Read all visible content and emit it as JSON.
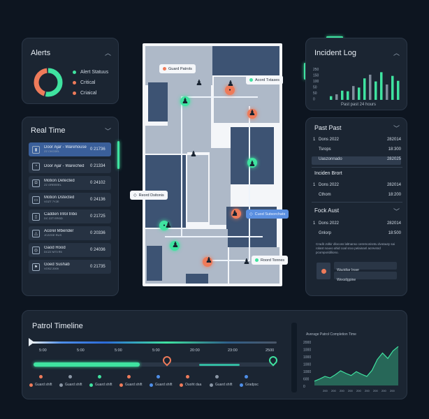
{
  "alerts": {
    "title": "Alerts",
    "legend": [
      {
        "label": "Alert Statuus",
        "color": "#3fe3a0"
      },
      {
        "label": "Critical",
        "color": "#ee7b5a"
      },
      {
        "label": "Criaical",
        "color": "#ee7b5a"
      }
    ],
    "donut": {
      "green_fraction": 0.55,
      "orange_fraction": 0.45,
      "green": "#3fe3a0",
      "orange": "#ee7b5a"
    }
  },
  "realtime": {
    "title": "Real Time",
    "items": [
      {
        "title": "Door Ajar - Warehouse",
        "sub": "ZZ CKCDEL",
        "value": "0 21736",
        "icon": "door-icon",
        "glyph": "▮"
      },
      {
        "title": "Door Ajar - Wareched",
        "sub": "",
        "value": "0 21334",
        "icon": "clock-icon",
        "glyph": "◔"
      },
      {
        "title": "Motion Detected",
        "sub": "ZZ OREEEEL",
        "value": "0 24102",
        "icon": "camera-icon",
        "glyph": "◘"
      },
      {
        "title": "Motion Dstected",
        "sub": "VOZT 7Y2E",
        "value": "0 24136",
        "icon": "screen-icon",
        "glyph": "▭"
      },
      {
        "title": "Cadden Infol tribo",
        "sub": "DC ZZT ERGD",
        "value": "0 21725",
        "icon": "phone-icon",
        "glyph": "▯"
      },
      {
        "title": "Acorel Mberider",
        "sub": "JCZZGE RUS",
        "value": "0 20336",
        "icon": "shield-icon",
        "glyph": "△"
      },
      {
        "title": "Gaod Rood",
        "sub": "DCZZ M73 R5",
        "value": "0 24036",
        "icon": "pin-icon",
        "glyph": "◎"
      },
      {
        "title": "Goed Sushab",
        "sub": "VOSZ 2009",
        "value": "0 21735",
        "icon": "flag-icon",
        "glyph": "⚑"
      }
    ]
  },
  "map": {
    "tags": [
      {
        "label": "Guard Patrols",
        "dot": "#ee7b5a",
        "style": "light"
      },
      {
        "label": "Acord Txtases",
        "dot": "#3fe3a0",
        "style": "light"
      },
      {
        "label": "Reord Dsitonis",
        "dot": "",
        "style": "light"
      },
      {
        "label": "Cuod Sutsorchatx",
        "dot": "",
        "style": "blue"
      },
      {
        "label": "Roord Tonnes",
        "dot": "#3fe3a0",
        "style": "light"
      }
    ]
  },
  "incident_log": {
    "title": "Incident Log",
    "yticks": [
      "250",
      "150",
      "100",
      "50",
      "50",
      "0"
    ],
    "bars": [
      0.12,
      0.18,
      0.3,
      0.28,
      0.45,
      0.4,
      0.7,
      0.82,
      0.6,
      0.9,
      0.5,
      0.78,
      0.62
    ],
    "bar_color": "#3fe3a0",
    "caption": "Past past 24 hours"
  },
  "past": {
    "title": "Past Past",
    "rows": [
      {
        "n": "1",
        "a": "Dons 2022",
        "b": "282014"
      },
      {
        "n": "",
        "a": "Tsrops",
        "b": "18:300"
      },
      {
        "n": "",
        "a": "Uaszonnado",
        "b": "282025"
      }
    ]
  },
  "incident_brort": {
    "title": "Inciden Brort",
    "rows": [
      {
        "n": "1",
        "a": "Dons 2022",
        "b": "282014"
      },
      {
        "n": "",
        "a": "Cthom",
        "b": "18:200"
      }
    ]
  },
  "fock_aust": {
    "title": "Fock Aust",
    "rows": [
      {
        "n": "1",
        "a": "Dons 2022",
        "b": "282014"
      },
      {
        "n": "",
        "a": "Gnlorp",
        "b": "18:500"
      }
    ],
    "para": "Cradit Jolkir dlocoss laltnanso ceremonisntu dvotauty sai rolant nouvo ahid coal sroo pelainanl acrevsnd pcomporidiliono.",
    "items": [
      "Wazidtar Inser",
      "Wexstlgpine"
    ]
  },
  "patrol": {
    "title": "Patrol Timeline",
    "times": [
      "5:00",
      "5:00",
      "5:00",
      "5:00",
      "20:00",
      "23:00",
      "2500"
    ],
    "progress": 0.44,
    "legend": [
      {
        "label": "Guard shift",
        "color": "#ee7b5a"
      },
      {
        "label": "Guard shift",
        "color": "#8b97a6"
      },
      {
        "label": "Guard shift",
        "color": "#3fe3a0"
      },
      {
        "label": "Guard shift",
        "color": "#ee7b5a"
      },
      {
        "label": "Guard shift",
        "color": "#4e8ee8"
      },
      {
        "label": "Ouoht daa",
        "color": "#ee7b5a"
      },
      {
        "label": "Guard shift",
        "color": "#8b97a6"
      },
      {
        "label": "Gradpsc",
        "color": "#4e8ee8"
      }
    ]
  },
  "completion": {
    "title": "Average Patrol Completion Time",
    "yticks": [
      "2000",
      "1000",
      "1000",
      "1000",
      "1000",
      "600",
      "0"
    ],
    "xticks": [
      "200",
      "200",
      "200",
      "200",
      "200",
      "200",
      "200",
      "200",
      "200"
    ],
    "chart_data": {
      "type": "area",
      "x": [
        0,
        1,
        2,
        3,
        4,
        5,
        6,
        7,
        8,
        9,
        10,
        11,
        12,
        13,
        14,
        15,
        16
      ],
      "y": [
        200,
        300,
        420,
        350,
        500,
        680,
        560,
        460,
        640,
        520,
        420,
        700,
        1200,
        1500,
        1250,
        1600,
        1800
      ],
      "ylim": [
        0,
        2000
      ],
      "color": "#3fe3a0"
    }
  }
}
